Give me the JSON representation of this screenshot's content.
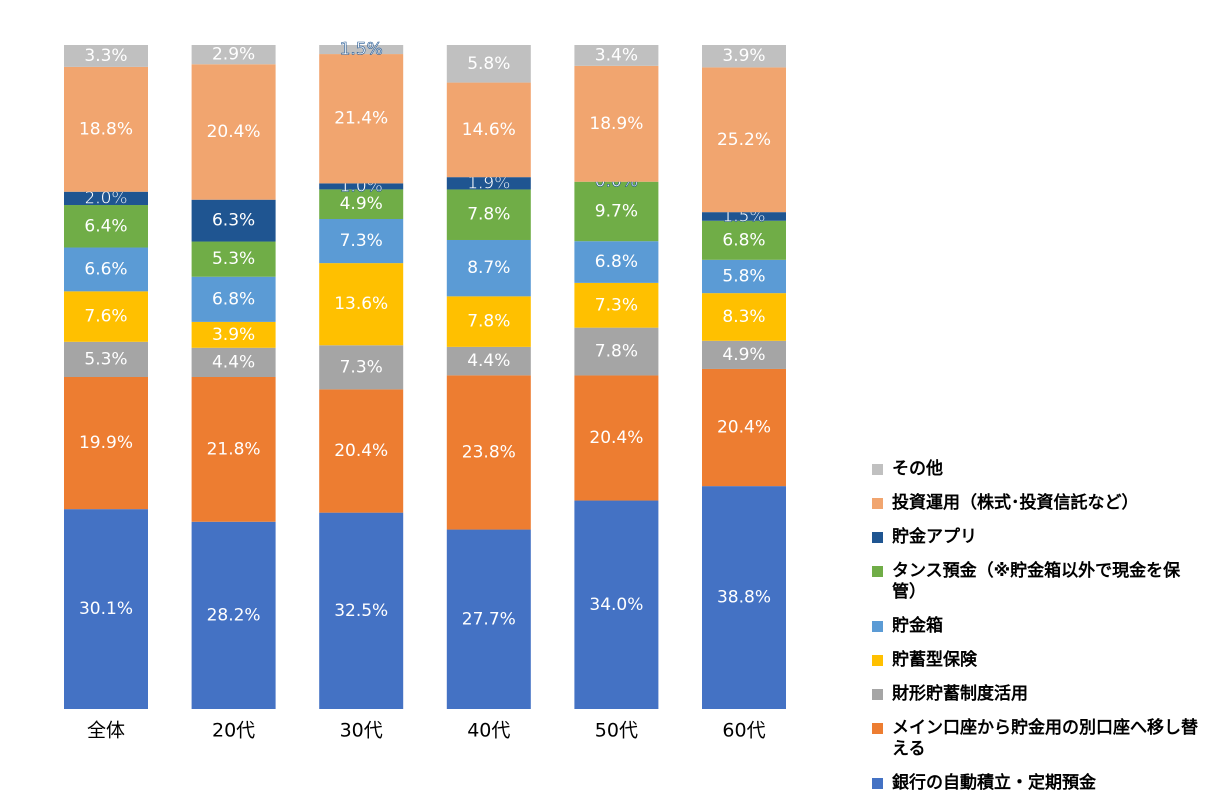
{
  "chart_data": {
    "type": "bar",
    "stacked": "percent",
    "categories": [
      "全体",
      "20代",
      "30代",
      "40代",
      "50代",
      "60代"
    ],
    "ylim": [
      0,
      100
    ],
    "series": [
      {
        "name": "銀行の自動積立・定期預金",
        "color": "#4472c4",
        "values": [
          30.1,
          28.2,
          32.5,
          27.7,
          34.0,
          38.8
        ],
        "value_labels": [
          "30.1%",
          "28.2%",
          "32.5%",
          "27.7%",
          "34.0%",
          "38.8%"
        ]
      },
      {
        "name": "メイン口座から貯金用の別口座へ移し替える",
        "color": "#ed7d31",
        "values": [
          19.9,
          21.8,
          20.4,
          23.8,
          20.4,
          20.4
        ],
        "value_labels": [
          "19.9%",
          "21.8%",
          "20.4%",
          "23.8%",
          "20.4%",
          "20.4%"
        ]
      },
      {
        "name": "財形貯蓄制度活用",
        "color": "#a5a5a5",
        "values": [
          5.3,
          4.4,
          7.3,
          4.4,
          7.8,
          4.9
        ],
        "value_labels": [
          "5.3%",
          "4.4%",
          "7.3%",
          "4.4%",
          "7.8%",
          "4.9%"
        ]
      },
      {
        "name": "貯蓄型保険",
        "color": "#ffc000",
        "values": [
          7.6,
          3.9,
          13.6,
          7.8,
          7.3,
          8.3
        ],
        "value_labels": [
          "7.6%",
          "3.9%",
          "13.6%",
          "7.8%",
          "7.3%",
          "8.3%"
        ]
      },
      {
        "name": "貯金箱",
        "color": "#5b9bd5",
        "values": [
          6.6,
          6.8,
          7.3,
          8.7,
          6.8,
          5.8
        ],
        "value_labels": [
          "6.6%",
          "6.8%",
          "7.3%",
          "8.7%",
          "6.8%",
          "5.8%"
        ]
      },
      {
        "name": "タンス預金（※貯金箱以外で現金を保管）",
        "color": "#70ad47",
        "values": [
          6.4,
          5.3,
          4.9,
          7.8,
          9.7,
          6.8
        ],
        "value_labels": [
          "6.4%",
          "5.3%",
          "4.9%",
          "7.8%",
          "9.7%",
          "6.8%"
        ]
      },
      {
        "name": "貯金アプリ",
        "color": "#1f5591",
        "values": [
          2.0,
          6.3,
          1.0,
          1.9,
          0.0,
          1.5
        ],
        "value_labels": [
          "2.0%",
          "6.3%",
          "1.0%",
          "1.9%",
          "0.0%",
          "1.5%"
        ]
      },
      {
        "name": "投資運用（株式･投資信託など）",
        "color": "#f1a56f",
        "values": [
          18.8,
          20.4,
          21.4,
          14.6,
          18.9,
          25.2
        ],
        "value_labels": [
          "18.8%",
          "20.4%",
          "21.4%",
          "14.6%",
          "18.9%",
          "25.2%"
        ]
      },
      {
        "name": "その他",
        "color": "#c0c0c0",
        "values": [
          3.3,
          2.9,
          1.5,
          5.8,
          3.4,
          3.9
        ],
        "value_labels": [
          "3.3%",
          "2.9%",
          "1.5%",
          "5.8%",
          "3.4%",
          "3.9%"
        ]
      }
    ]
  }
}
